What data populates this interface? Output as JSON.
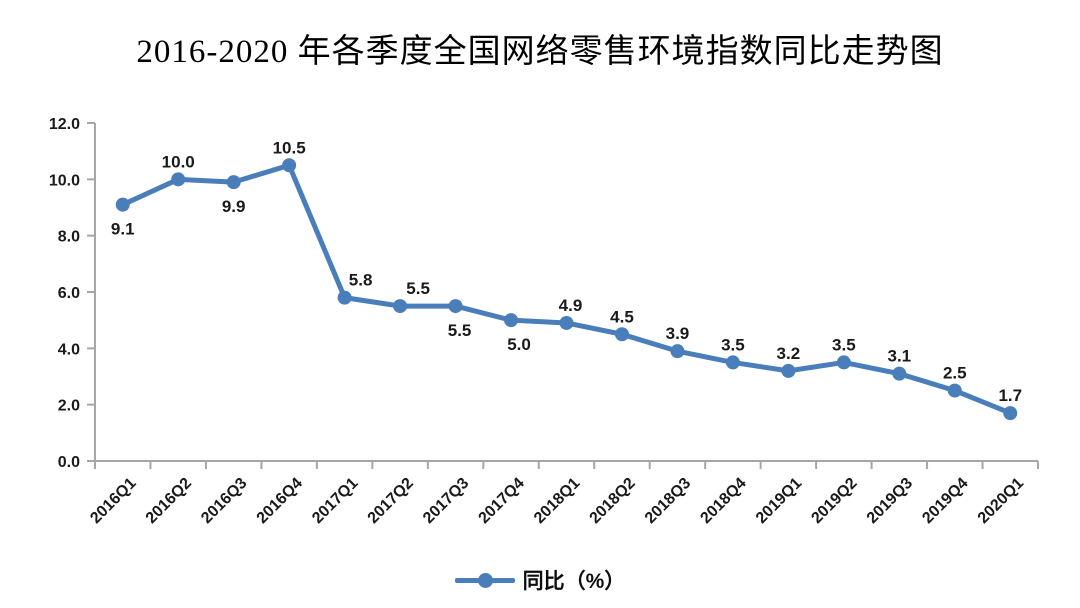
{
  "title": "2016-2020 年各季度全国网络零售环境指数同比走势图",
  "chart_data": {
    "type": "line",
    "title": "2016-2020 年各季度全国网络零售环境指数同比走势图",
    "categories": [
      "2016Q1",
      "2016Q2",
      "2016Q3",
      "2016Q4",
      "2017Q1",
      "2017Q2",
      "2017Q3",
      "2017Q4",
      "2018Q1",
      "2018Q2",
      "2018Q3",
      "2018Q4",
      "2019Q1",
      "2019Q2",
      "2019Q3",
      "2019Q4",
      "2020Q1"
    ],
    "series": [
      {
        "name": "同比（%）",
        "values": [
          9.1,
          10.0,
          9.9,
          10.5,
          5.8,
          5.5,
          5.5,
          5.0,
          4.9,
          4.5,
          3.9,
          3.5,
          3.2,
          3.5,
          3.1,
          2.5,
          1.7
        ]
      }
    ],
    "xlabel": "",
    "ylabel": "",
    "ylim": [
      0,
      12
    ],
    "ytick_step": 2,
    "ytick_labels": [
      "0.0",
      "2.0",
      "4.0",
      "6.0",
      "8.0",
      "10.0",
      "12.0"
    ],
    "grid": false,
    "legend_position": "bottom",
    "data_labels_shown": true,
    "data_label_positions": [
      "below",
      "above",
      "below",
      "above",
      "above",
      "above",
      "below",
      "below",
      "above",
      "above",
      "above",
      "above",
      "above",
      "above",
      "above",
      "above",
      "above"
    ],
    "data_label_dx": [
      0,
      0,
      0,
      0,
      16,
      18,
      4,
      8,
      4,
      0,
      0,
      0,
      0,
      0,
      0,
      0,
      0
    ],
    "colors": {
      "line": "#4a7ebb",
      "axis": "#a6a6a6",
      "text": "#1a1a1a"
    }
  }
}
